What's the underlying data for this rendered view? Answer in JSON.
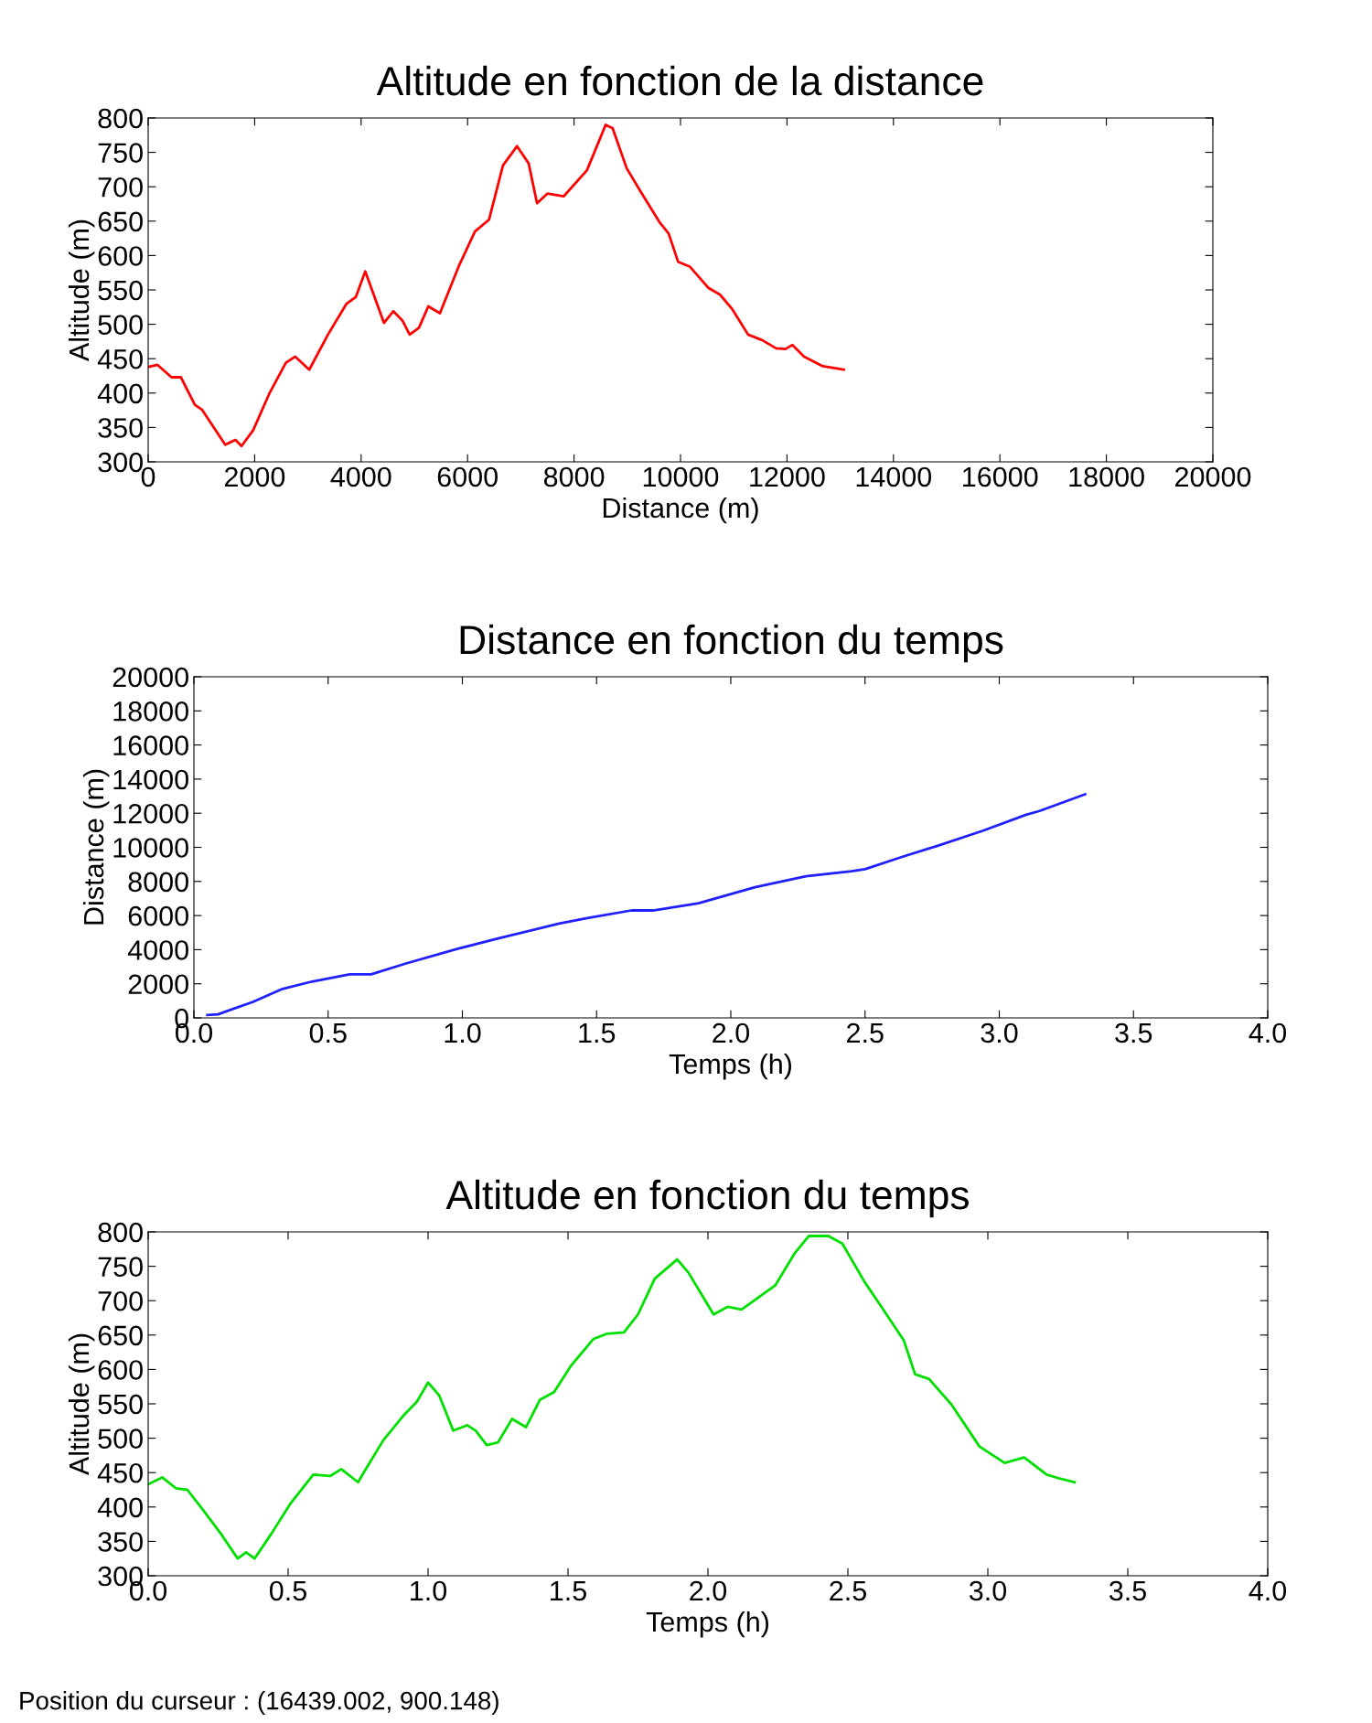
{
  "chart_data": [
    {
      "type": "line",
      "title": "Altitude en fonction de la distance",
      "xlabel": "Distance (m)",
      "ylabel": "Altitude (m)",
      "xlim": [
        0,
        20000
      ],
      "ylim": [
        300,
        800
      ],
      "xticks": [
        0,
        2000,
        4000,
        6000,
        8000,
        10000,
        12000,
        14000,
        16000,
        18000,
        20000
      ],
      "yticks": [
        300,
        350,
        400,
        450,
        500,
        550,
        600,
        650,
        700,
        750,
        800
      ],
      "grid": false,
      "legend": false,
      "marker": "none",
      "line_style": "solid",
      "x": [
        0,
        175,
        438,
        614,
        877,
        1009,
        1447,
        1640,
        1754,
        1973,
        2280,
        2587,
        2763,
        3026,
        3377,
        3727,
        3903,
        4078,
        4429,
        4604,
        4780,
        4912,
        5087,
        5262,
        5481,
        5832,
        6139,
        6402,
        6665,
        6928,
        7147,
        7305,
        7498,
        7805,
        8243,
        8594,
        8725,
        8988,
        9251,
        9601,
        9777,
        9954,
        10173,
        10524,
        10743,
        10963,
        11270,
        11533,
        11796,
        11971,
        12103,
        12322,
        12673,
        13067
      ],
      "series": [
        {
          "color": "#ff0000",
          "values": [
            438,
            441,
            423,
            423,
            383,
            376,
            325,
            332,
            323,
            346,
            400,
            444,
            453,
            434,
            485,
            530,
            540,
            577,
            502,
            519,
            505,
            485,
            495,
            526,
            516,
            584,
            635,
            652,
            731,
            759,
            734,
            676,
            690,
            686,
            724,
            790,
            785,
            727,
            693,
            649,
            632,
            591,
            584,
            553,
            543,
            523,
            485,
            477,
            465,
            464,
            470,
            453,
            439,
            434
          ]
        }
      ]
    },
    {
      "type": "line",
      "title": "Distance en fonction du temps",
      "xlabel": "Temps (h)",
      "ylabel": "Distance (m)",
      "xlim": [
        0,
        4
      ],
      "ylim": [
        0,
        20000
      ],
      "xticks": [
        {
          "value": 0,
          "label": "0.0"
        },
        {
          "value": 0.5,
          "label": "0.5"
        },
        {
          "value": 1,
          "label": "1.0"
        },
        {
          "value": 1.5,
          "label": "1.5"
        },
        {
          "value": 2,
          "label": "2.0"
        },
        {
          "value": 2.5,
          "label": "2.5"
        },
        {
          "value": 3,
          "label": "3.0"
        },
        {
          "value": 3.5,
          "label": "3.5"
        },
        {
          "value": 4,
          "label": "4.0"
        }
      ],
      "yticks": [
        0,
        2000,
        4000,
        6000,
        8000,
        10000,
        12000,
        14000,
        16000,
        18000,
        20000
      ],
      "grid": false,
      "legend": false,
      "marker": "none",
      "line_style": "solid",
      "x": [
        0.05,
        0.09,
        0.22,
        0.33,
        0.44,
        0.58,
        0.66,
        0.79,
        0.98,
        1.14,
        1.36,
        1.47,
        1.63,
        1.71,
        1.88,
        2.09,
        2.28,
        2.45,
        2.5,
        2.64,
        2.77,
        2.94,
        3.1,
        3.15,
        3.32
      ],
      "series": [
        {
          "color": "#2020ff",
          "values": [
            170,
            210,
            940,
            1700,
            2130,
            2550,
            2550,
            3190,
            4040,
            4680,
            5530,
            5870,
            6300,
            6300,
            6720,
            7660,
            8300,
            8600,
            8720,
            9450,
            10090,
            10980,
            11910,
            12130,
            13110
          ]
        }
      ]
    },
    {
      "type": "line",
      "title": "Altitude en fonction du temps",
      "xlabel": "Temps (h)",
      "ylabel": "Altitude (m)",
      "xlim": [
        0,
        4
      ],
      "ylim": [
        300,
        800
      ],
      "xticks": [
        {
          "value": 0,
          "label": "0.0"
        },
        {
          "value": 0.5,
          "label": "0.5"
        },
        {
          "value": 1,
          "label": "1.0"
        },
        {
          "value": 1.5,
          "label": "1.5"
        },
        {
          "value": 2,
          "label": "2.0"
        },
        {
          "value": 2.5,
          "label": "2.5"
        },
        {
          "value": 3,
          "label": "3.0"
        },
        {
          "value": 3.5,
          "label": "3.5"
        },
        {
          "value": 4,
          "label": "4.0"
        }
      ],
      "yticks": [
        300,
        350,
        400,
        450,
        500,
        550,
        600,
        650,
        700,
        750,
        800
      ],
      "grid": false,
      "legend": false,
      "marker": "none",
      "line_style": "solid",
      "annotations": [
        "Position du curseur : (16439.002, 900.148)"
      ],
      "x": [
        0,
        0.05,
        0.1,
        0.14,
        0.19,
        0.26,
        0.32,
        0.35,
        0.38,
        0.44,
        0.51,
        0.59,
        0.65,
        0.69,
        0.75,
        0.77,
        0.84,
        0.91,
        0.96,
        1.0,
        1.04,
        1.09,
        1.14,
        1.17,
        1.21,
        1.25,
        1.3,
        1.35,
        1.4,
        1.45,
        1.51,
        1.59,
        1.64,
        1.7,
        1.75,
        1.81,
        1.89,
        1.93,
        2.02,
        2.07,
        2.12,
        2.24,
        2.31,
        2.36,
        2.43,
        2.48,
        2.56,
        2.62,
        2.7,
        2.74,
        2.79,
        2.87,
        2.97,
        3.06,
        3.13,
        3.21,
        3.26,
        3.31
      ],
      "series": [
        {
          "color": "#00e000",
          "values": [
            433,
            443,
            427,
            425,
            399,
            361,
            325,
            334,
            325,
            361,
            406,
            447,
            445,
            455,
            436,
            450,
            497,
            532,
            553,
            581,
            562,
            511,
            519,
            511,
            490,
            494,
            528,
            516,
            556,
            567,
            605,
            644,
            652,
            654,
            680,
            732,
            760,
            741,
            680,
            691,
            687,
            722,
            769,
            794,
            794,
            783,
            727,
            691,
            642,
            593,
            586,
            549,
            488,
            464,
            472,
            447,
            441,
            436
          ]
        }
      ]
    }
  ]
}
